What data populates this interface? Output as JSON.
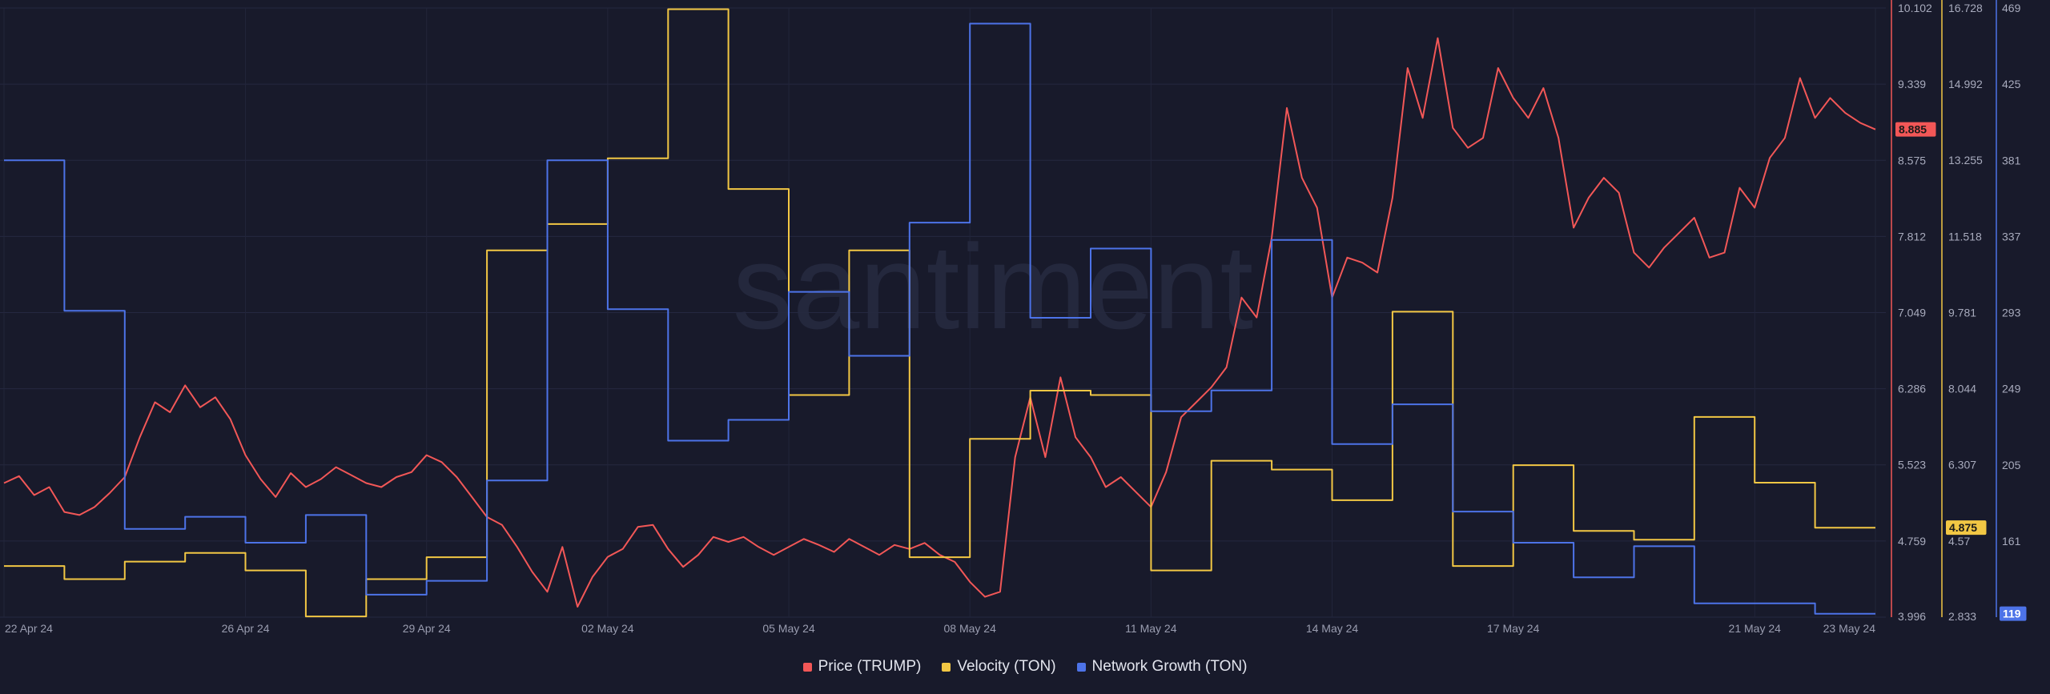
{
  "watermark": "santiment",
  "chart_data": {
    "type": "line",
    "x_range": [
      "2024-04-22",
      "2024-05-23"
    ],
    "x_tick_labels": [
      "22 Apr 24",
      "26 Apr 24",
      "29 Apr 24",
      "02 May 24",
      "05 May 24",
      "08 May 24",
      "11 May 24",
      "14 May 24",
      "17 May 24",
      "21 May 24",
      "23 May 24"
    ],
    "grid": true,
    "legend_position": "bottom-center",
    "axes": [
      {
        "id": "price",
        "series": "Price (TRUMP)",
        "ylim": [
          3.996,
          10.102
        ],
        "ticks": [
          "10.102",
          "9.339",
          "8.575",
          "7.812",
          "7.049",
          "6.286",
          "5.523",
          "4.759",
          "3.996"
        ],
        "current": "8.885"
      },
      {
        "id": "velocity",
        "series": "Velocity (TON)",
        "ylim": [
          2.833,
          16.728
        ],
        "ticks": [
          "16.728",
          "14.992",
          "13.255",
          "11.518",
          "9.781",
          "8.044",
          "6.307",
          "4.57",
          "2.833"
        ],
        "current": "4.875"
      },
      {
        "id": "growth",
        "series": "Network Growth (TON)",
        "ylim": [
          117,
          469
        ],
        "ticks": [
          "469",
          "425",
          "381",
          "337",
          "293",
          "249",
          "205",
          "161"
        ],
        "current": "119"
      }
    ],
    "series": [
      {
        "name": "Price (TRUMP)",
        "axis": "price",
        "color": "#f25757",
        "style": "line",
        "points": [
          [
            "2024-04-22T00:00",
            5.34
          ],
          [
            "2024-04-22T06:00",
            5.41
          ],
          [
            "2024-04-22T12:00",
            5.22
          ],
          [
            "2024-04-22T18:00",
            5.3
          ],
          [
            "2024-04-23T00:00",
            5.05
          ],
          [
            "2024-04-23T06:00",
            5.02
          ],
          [
            "2024-04-23T12:00",
            5.1
          ],
          [
            "2024-04-23T18:00",
            5.24
          ],
          [
            "2024-04-24T00:00",
            5.4
          ],
          [
            "2024-04-24T06:00",
            5.8
          ],
          [
            "2024-04-24T12:00",
            6.15
          ],
          [
            "2024-04-24T18:00",
            6.05
          ],
          [
            "2024-04-25T00:00",
            6.32
          ],
          [
            "2024-04-25T06:00",
            6.1
          ],
          [
            "2024-04-25T12:00",
            6.2
          ],
          [
            "2024-04-25T18:00",
            5.98
          ],
          [
            "2024-04-26T00:00",
            5.62
          ],
          [
            "2024-04-26T06:00",
            5.38
          ],
          [
            "2024-04-26T12:00",
            5.2
          ],
          [
            "2024-04-26T18:00",
            5.44
          ],
          [
            "2024-04-27T00:00",
            5.3
          ],
          [
            "2024-04-27T06:00",
            5.38
          ],
          [
            "2024-04-27T12:00",
            5.5
          ],
          [
            "2024-04-27T18:00",
            5.42
          ],
          [
            "2024-04-28T00:00",
            5.34
          ],
          [
            "2024-04-28T06:00",
            5.3
          ],
          [
            "2024-04-28T12:00",
            5.4
          ],
          [
            "2024-04-28T18:00",
            5.45
          ],
          [
            "2024-04-29T00:00",
            5.62
          ],
          [
            "2024-04-29T06:00",
            5.55
          ],
          [
            "2024-04-29T12:00",
            5.4
          ],
          [
            "2024-04-29T18:00",
            5.2
          ],
          [
            "2024-04-30T00:00",
            5.0
          ],
          [
            "2024-04-30T06:00",
            4.92
          ],
          [
            "2024-04-30T12:00",
            4.7
          ],
          [
            "2024-04-30T18:00",
            4.45
          ],
          [
            "2024-05-01T00:00",
            4.25
          ],
          [
            "2024-05-01T06:00",
            4.7
          ],
          [
            "2024-05-01T12:00",
            4.1
          ],
          [
            "2024-05-01T18:00",
            4.4
          ],
          [
            "2024-05-02T00:00",
            4.6
          ],
          [
            "2024-05-02T06:00",
            4.68
          ],
          [
            "2024-05-02T12:00",
            4.9
          ],
          [
            "2024-05-02T18:00",
            4.92
          ],
          [
            "2024-05-03T00:00",
            4.68
          ],
          [
            "2024-05-03T06:00",
            4.5
          ],
          [
            "2024-05-03T12:00",
            4.62
          ],
          [
            "2024-05-03T18:00",
            4.8
          ],
          [
            "2024-05-04T00:00",
            4.75
          ],
          [
            "2024-05-04T06:00",
            4.8
          ],
          [
            "2024-05-04T12:00",
            4.7
          ],
          [
            "2024-05-04T18:00",
            4.62
          ],
          [
            "2024-05-05T00:00",
            4.7
          ],
          [
            "2024-05-05T06:00",
            4.78
          ],
          [
            "2024-05-05T12:00",
            4.72
          ],
          [
            "2024-05-05T18:00",
            4.65
          ],
          [
            "2024-05-06T00:00",
            4.78
          ],
          [
            "2024-05-06T06:00",
            4.7
          ],
          [
            "2024-05-06T12:00",
            4.62
          ],
          [
            "2024-05-06T18:00",
            4.72
          ],
          [
            "2024-05-07T00:00",
            4.68
          ],
          [
            "2024-05-07T06:00",
            4.74
          ],
          [
            "2024-05-07T12:00",
            4.62
          ],
          [
            "2024-05-07T18:00",
            4.55
          ],
          [
            "2024-05-08T00:00",
            4.35
          ],
          [
            "2024-05-08T06:00",
            4.2
          ],
          [
            "2024-05-08T12:00",
            4.25
          ],
          [
            "2024-05-08T18:00",
            5.6
          ],
          [
            "2024-05-09T00:00",
            6.2
          ],
          [
            "2024-05-09T06:00",
            5.6
          ],
          [
            "2024-05-09T12:00",
            6.4
          ],
          [
            "2024-05-09T18:00",
            5.8
          ],
          [
            "2024-05-10T00:00",
            5.6
          ],
          [
            "2024-05-10T06:00",
            5.3
          ],
          [
            "2024-05-10T12:00",
            5.4
          ],
          [
            "2024-05-10T18:00",
            5.25
          ],
          [
            "2024-05-11T00:00",
            5.1
          ],
          [
            "2024-05-11T06:00",
            5.45
          ],
          [
            "2024-05-11T12:00",
            6.0
          ],
          [
            "2024-05-11T18:00",
            6.15
          ],
          [
            "2024-05-12T00:00",
            6.3
          ],
          [
            "2024-05-12T06:00",
            6.5
          ],
          [
            "2024-05-12T12:00",
            7.2
          ],
          [
            "2024-05-12T18:00",
            7.0
          ],
          [
            "2024-05-13T00:00",
            7.8
          ],
          [
            "2024-05-13T06:00",
            9.1
          ],
          [
            "2024-05-13T12:00",
            8.4
          ],
          [
            "2024-05-13T18:00",
            8.1
          ],
          [
            "2024-05-14T00:00",
            7.2
          ],
          [
            "2024-05-14T06:00",
            7.6
          ],
          [
            "2024-05-14T12:00",
            7.55
          ],
          [
            "2024-05-14T18:00",
            7.45
          ],
          [
            "2024-05-15T00:00",
            8.2
          ],
          [
            "2024-05-15T06:00",
            9.5
          ],
          [
            "2024-05-15T12:00",
            9.0
          ],
          [
            "2024-05-15T18:00",
            9.8
          ],
          [
            "2024-05-16T00:00",
            8.9
          ],
          [
            "2024-05-16T06:00",
            8.7
          ],
          [
            "2024-05-16T12:00",
            8.8
          ],
          [
            "2024-05-16T18:00",
            9.5
          ],
          [
            "2024-05-17T00:00",
            9.2
          ],
          [
            "2024-05-17T06:00",
            9.0
          ],
          [
            "2024-05-17T12:00",
            9.3
          ],
          [
            "2024-05-17T18:00",
            8.8
          ],
          [
            "2024-05-18T00:00",
            7.9
          ],
          [
            "2024-05-18T06:00",
            8.2
          ],
          [
            "2024-05-18T12:00",
            8.4
          ],
          [
            "2024-05-18T18:00",
            8.25
          ],
          [
            "2024-05-19T00:00",
            7.65
          ],
          [
            "2024-05-19T06:00",
            7.5
          ],
          [
            "2024-05-19T12:00",
            7.7
          ],
          [
            "2024-05-19T18:00",
            7.85
          ],
          [
            "2024-05-20T00:00",
            8.0
          ],
          [
            "2024-05-20T06:00",
            7.6
          ],
          [
            "2024-05-20T12:00",
            7.65
          ],
          [
            "2024-05-20T18:00",
            8.3
          ],
          [
            "2024-05-21T00:00",
            8.1
          ],
          [
            "2024-05-21T06:00",
            8.6
          ],
          [
            "2024-05-21T12:00",
            8.8
          ],
          [
            "2024-05-21T18:00",
            9.4
          ],
          [
            "2024-05-22T00:00",
            9.0
          ],
          [
            "2024-05-22T06:00",
            9.2
          ],
          [
            "2024-05-22T12:00",
            9.05
          ],
          [
            "2024-05-22T18:00",
            8.95
          ],
          [
            "2024-05-23T00:00",
            8.885
          ]
        ]
      },
      {
        "name": "Velocity (TON)",
        "axis": "velocity",
        "color": "#f2c744",
        "style": "step",
        "points": [
          [
            "2024-04-22",
            4.0
          ],
          [
            "2024-04-23",
            3.7
          ],
          [
            "2024-04-24",
            4.1
          ],
          [
            "2024-04-25",
            4.3
          ],
          [
            "2024-04-26",
            3.9
          ],
          [
            "2024-04-27",
            2.85
          ],
          [
            "2024-04-28",
            3.7
          ],
          [
            "2024-04-29",
            4.2
          ],
          [
            "2024-04-30",
            11.2
          ],
          [
            "2024-05-01",
            11.8
          ],
          [
            "2024-05-02",
            13.3
          ],
          [
            "2024-05-03",
            16.7
          ],
          [
            "2024-05-04",
            12.6
          ],
          [
            "2024-05-05",
            7.9
          ],
          [
            "2024-05-06",
            11.2
          ],
          [
            "2024-05-07",
            4.2
          ],
          [
            "2024-05-08",
            6.9
          ],
          [
            "2024-05-09",
            8.0
          ],
          [
            "2024-05-10",
            7.9
          ],
          [
            "2024-05-11",
            3.9
          ],
          [
            "2024-05-12",
            6.4
          ],
          [
            "2024-05-13",
            6.2
          ],
          [
            "2024-05-14",
            5.5
          ],
          [
            "2024-05-15",
            9.8
          ],
          [
            "2024-05-16",
            4.0
          ],
          [
            "2024-05-17",
            6.3
          ],
          [
            "2024-05-18",
            4.8
          ],
          [
            "2024-05-19",
            4.6
          ],
          [
            "2024-05-20",
            7.4
          ],
          [
            "2024-05-21",
            5.9
          ],
          [
            "2024-05-22",
            4.875
          ],
          [
            "2024-05-23",
            4.875
          ]
        ]
      },
      {
        "name": "Network Growth (TON)",
        "axis": "growth",
        "color": "#4d73e8",
        "style": "step",
        "points": [
          [
            "2024-04-22",
            381
          ],
          [
            "2024-04-23",
            294
          ],
          [
            "2024-04-24",
            168
          ],
          [
            "2024-04-25",
            175
          ],
          [
            "2024-04-26",
            160
          ],
          [
            "2024-04-27",
            176
          ],
          [
            "2024-04-28",
            130
          ],
          [
            "2024-04-29",
            138
          ],
          [
            "2024-04-30",
            196
          ],
          [
            "2024-05-01",
            381
          ],
          [
            "2024-05-02",
            295
          ],
          [
            "2024-05-03",
            219
          ],
          [
            "2024-05-04",
            231
          ],
          [
            "2024-05-05",
            305
          ],
          [
            "2024-05-06",
            268
          ],
          [
            "2024-05-07",
            345
          ],
          [
            "2024-05-08",
            460
          ],
          [
            "2024-05-09",
            290
          ],
          [
            "2024-05-10",
            330
          ],
          [
            "2024-05-11",
            236
          ],
          [
            "2024-05-12",
            248
          ],
          [
            "2024-05-13",
            335
          ],
          [
            "2024-05-14",
            217
          ],
          [
            "2024-05-15",
            240
          ],
          [
            "2024-05-16",
            178
          ],
          [
            "2024-05-17",
            160
          ],
          [
            "2024-05-18",
            140
          ],
          [
            "2024-05-19",
            158
          ],
          [
            "2024-05-20",
            125
          ],
          [
            "2024-05-21",
            125
          ],
          [
            "2024-05-22",
            119
          ],
          [
            "2024-05-23",
            119
          ]
        ]
      }
    ]
  }
}
